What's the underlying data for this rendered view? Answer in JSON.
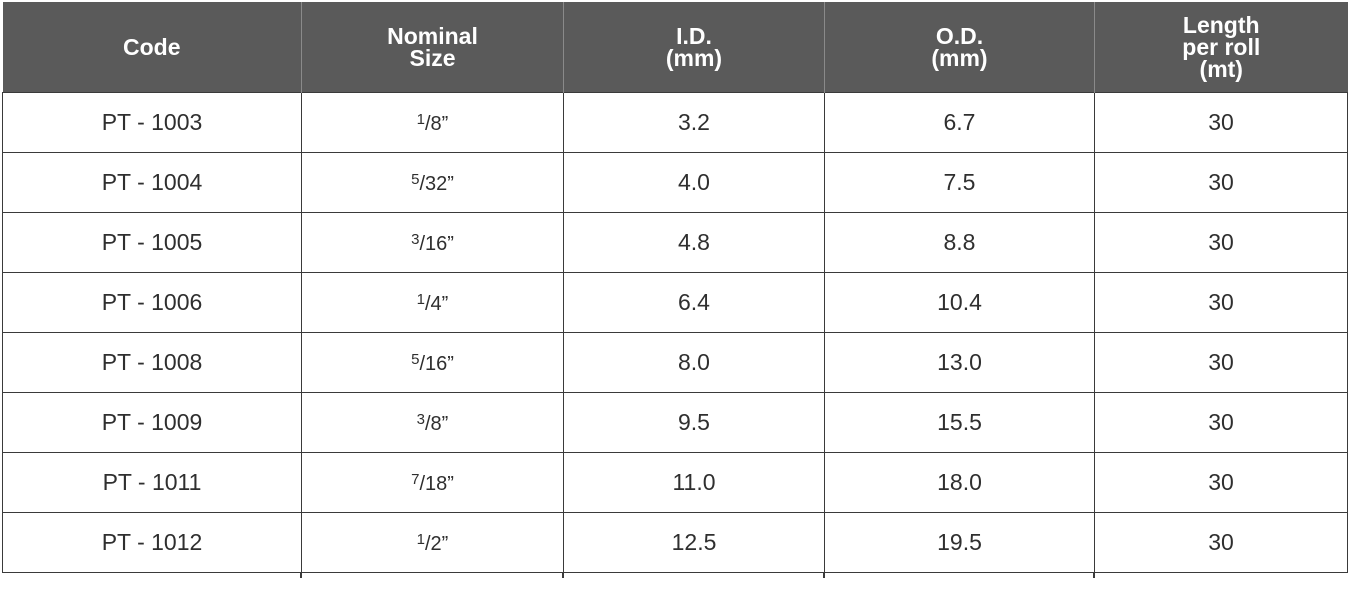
{
  "table": {
    "headers": [
      {
        "lines": [
          "Code"
        ]
      },
      {
        "lines": [
          "Nominal",
          "Size"
        ]
      },
      {
        "lines": [
          "I.D.",
          "(mm)"
        ]
      },
      {
        "lines": [
          "O.D.",
          "(mm)"
        ]
      },
      {
        "lines": [
          "Length",
          "per roll",
          "(mt)"
        ]
      }
    ],
    "rows": [
      {
        "code": "PT - 1003",
        "size_num": "1",
        "size_rest": "/8”",
        "id": "3.2",
        "od": "6.7",
        "length": "30"
      },
      {
        "code": "PT - 1004",
        "size_num": "5",
        "size_rest": "/32”",
        "id": "4.0",
        "od": "7.5",
        "length": "30"
      },
      {
        "code": "PT - 1005",
        "size_num": "3",
        "size_rest": "/16”",
        "id": "4.8",
        "od": "8.8",
        "length": "30"
      },
      {
        "code": "PT - 1006",
        "size_num": "1",
        "size_rest": "/4”",
        "id": "6.4",
        "od": "10.4",
        "length": "30"
      },
      {
        "code": "PT - 1008",
        "size_num": "5",
        "size_rest": "/16”",
        "id": "8.0",
        "od": "13.0",
        "length": "30"
      },
      {
        "code": "PT - 1009",
        "size_num": "3",
        "size_rest": "/8”",
        "id": "9.5",
        "od": "15.5",
        "length": "30"
      },
      {
        "code": "PT - 1011",
        "size_num": "7",
        "size_rest": "/18”",
        "id": "11.0",
        "od": "18.0",
        "length": "30"
      },
      {
        "code": "PT - 1012",
        "size_num": "1",
        "size_rest": "/2”",
        "id": "12.5",
        "od": "19.5",
        "length": "30"
      }
    ]
  },
  "colors": {
    "header_bg": "#5a5a5a",
    "header_text": "#ffffff",
    "grid": "#3a3a3a",
    "body_text": "#2f2f2f"
  }
}
